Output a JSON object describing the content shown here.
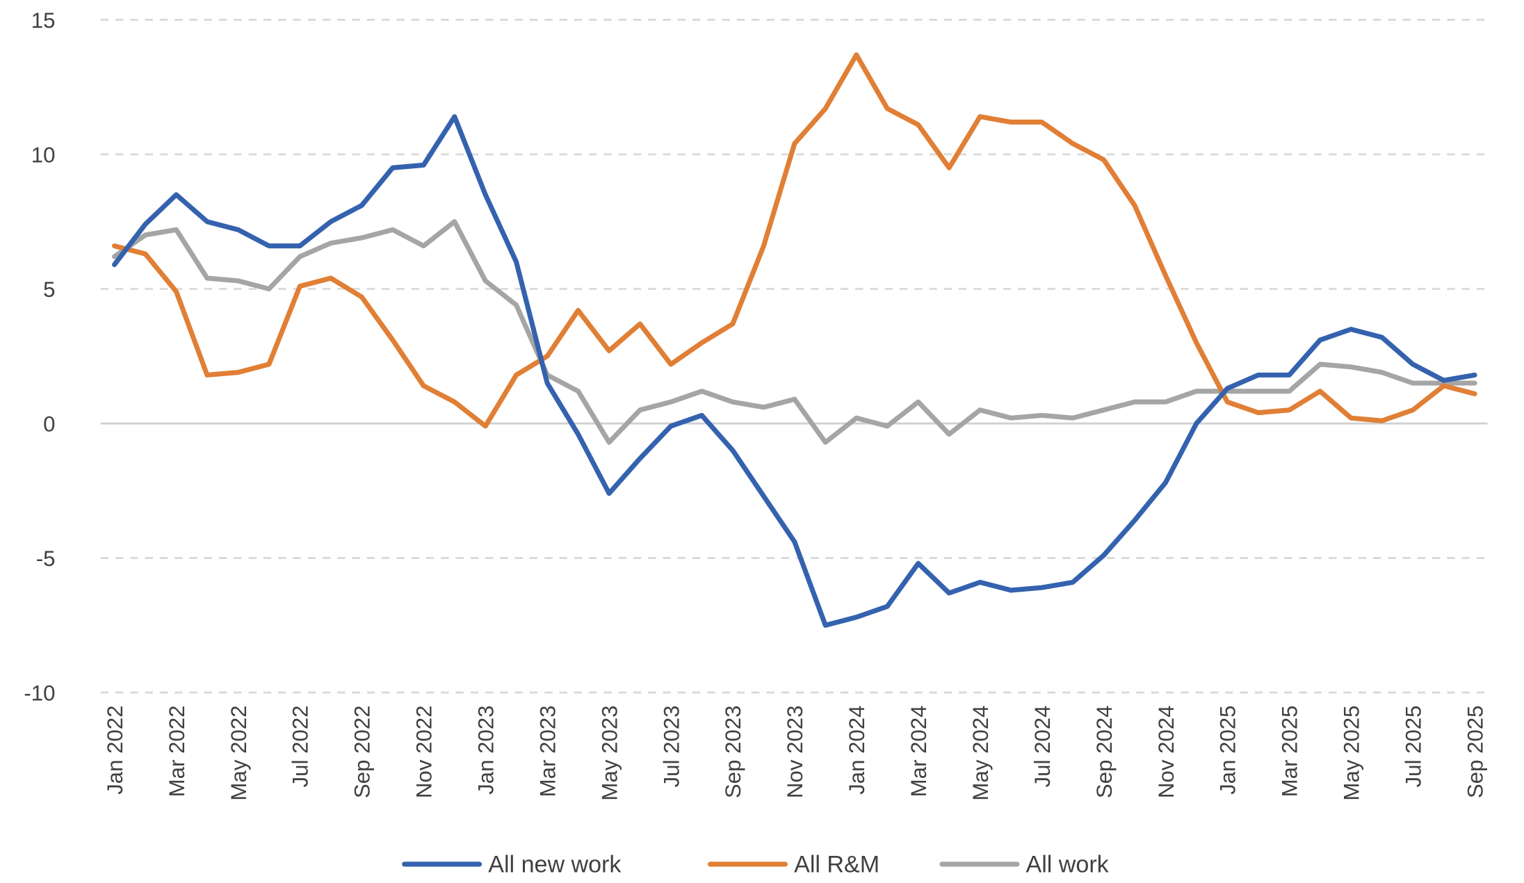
{
  "chart_data": {
    "type": "line",
    "title": "",
    "xlabel": "",
    "ylabel": "",
    "ylim": [
      -10,
      15
    ],
    "yticks": [
      -10,
      -5,
      0,
      5,
      10,
      15
    ],
    "grid": "horizontal dashed",
    "legend_position": "bottom",
    "categories": [
      "Jan 2022",
      "Feb 2022",
      "Mar 2022",
      "Apr 2022",
      "May 2022",
      "Jun 2022",
      "Jul 2022",
      "Aug 2022",
      "Sep 2022",
      "Oct 2022",
      "Nov 2022",
      "Dec 2022",
      "Jan 2023",
      "Feb 2023",
      "Mar 2023",
      "Apr 2023",
      "May 2023",
      "Jun 2023",
      "Jul 2023",
      "Aug 2023",
      "Sep 2023",
      "Oct 2023",
      "Nov 2023",
      "Dec 2023",
      "Jan 2024",
      "Feb 2024",
      "Mar 2024",
      "Apr 2024",
      "May 2024",
      "Jun 2024",
      "Jul 2024",
      "Aug 2024",
      "Sep 2024",
      "Oct 2024",
      "Nov 2024",
      "Dec 2024",
      "Jan 2025",
      "Feb 2025",
      "Mar 2025",
      "Apr 2025",
      "May 2025",
      "Jun 2025",
      "Jul 2025",
      "Aug 2025",
      "Sep 2025"
    ],
    "tick_labels": [
      "Jan 2022",
      "Mar 2022",
      "May 2022",
      "Jul 2022",
      "Sep 2022",
      "Nov 2022",
      "Jan 2023",
      "Mar 2023",
      "May 2023",
      "Jul 2023",
      "Sep 2023",
      "Nov 2023",
      "Jan 2024",
      "Mar 2024",
      "May 2024",
      "Jul 2024",
      "Sep 2024",
      "Nov 2024",
      "Jan 2025",
      "Mar 2025",
      "May 2025",
      "Jul 2025",
      "Sep 2025"
    ],
    "series": [
      {
        "name": "All new work",
        "color": "#3462AE",
        "values": [
          5.9,
          7.4,
          8.5,
          7.5,
          7.2,
          6.6,
          6.6,
          7.5,
          8.1,
          9.5,
          9.6,
          11.4,
          8.5,
          6.0,
          1.5,
          -0.4,
          -2.6,
          -1.3,
          -0.1,
          0.3,
          -1.0,
          -2.7,
          -4.4,
          -7.5,
          -7.2,
          -6.8,
          -5.2,
          -6.3,
          -5.9,
          -6.2,
          -6.1,
          -5.9,
          -4.9,
          -3.6,
          -2.2,
          0.0,
          1.3,
          1.8,
          1.8,
          3.1,
          3.5,
          3.2,
          2.2,
          1.6,
          1.8
        ]
      },
      {
        "name": "All R&M",
        "color": "#E07F35",
        "values": [
          6.6,
          6.3,
          4.9,
          1.8,
          1.9,
          2.2,
          5.1,
          5.4,
          4.7,
          3.1,
          1.4,
          0.8,
          -0.1,
          1.8,
          2.5,
          4.2,
          2.7,
          3.7,
          2.2,
          3.0,
          3.7,
          6.6,
          10.4,
          11.7,
          13.7,
          11.7,
          11.1,
          9.5,
          11.4,
          11.2,
          11.2,
          10.4,
          9.8,
          8.1,
          5.5,
          3.0,
          0.8,
          0.4,
          0.5,
          1.2,
          0.2,
          0.1,
          0.5,
          1.4,
          1.1
        ]
      },
      {
        "name": "All work",
        "color": "#A5A5A5",
        "values": [
          6.2,
          7.0,
          7.2,
          5.4,
          5.3,
          5.0,
          6.2,
          6.7,
          6.9,
          7.2,
          6.6,
          7.5,
          5.3,
          4.4,
          1.8,
          1.2,
          -0.7,
          0.5,
          0.8,
          1.2,
          0.8,
          0.6,
          0.9,
          -0.7,
          0.2,
          -0.1,
          0.8,
          -0.4,
          0.5,
          0.2,
          0.3,
          0.2,
          0.5,
          0.8,
          0.8,
          1.2,
          1.2,
          1.2,
          1.2,
          2.2,
          2.1,
          1.9,
          1.5,
          1.5,
          1.5
        ]
      }
    ]
  }
}
